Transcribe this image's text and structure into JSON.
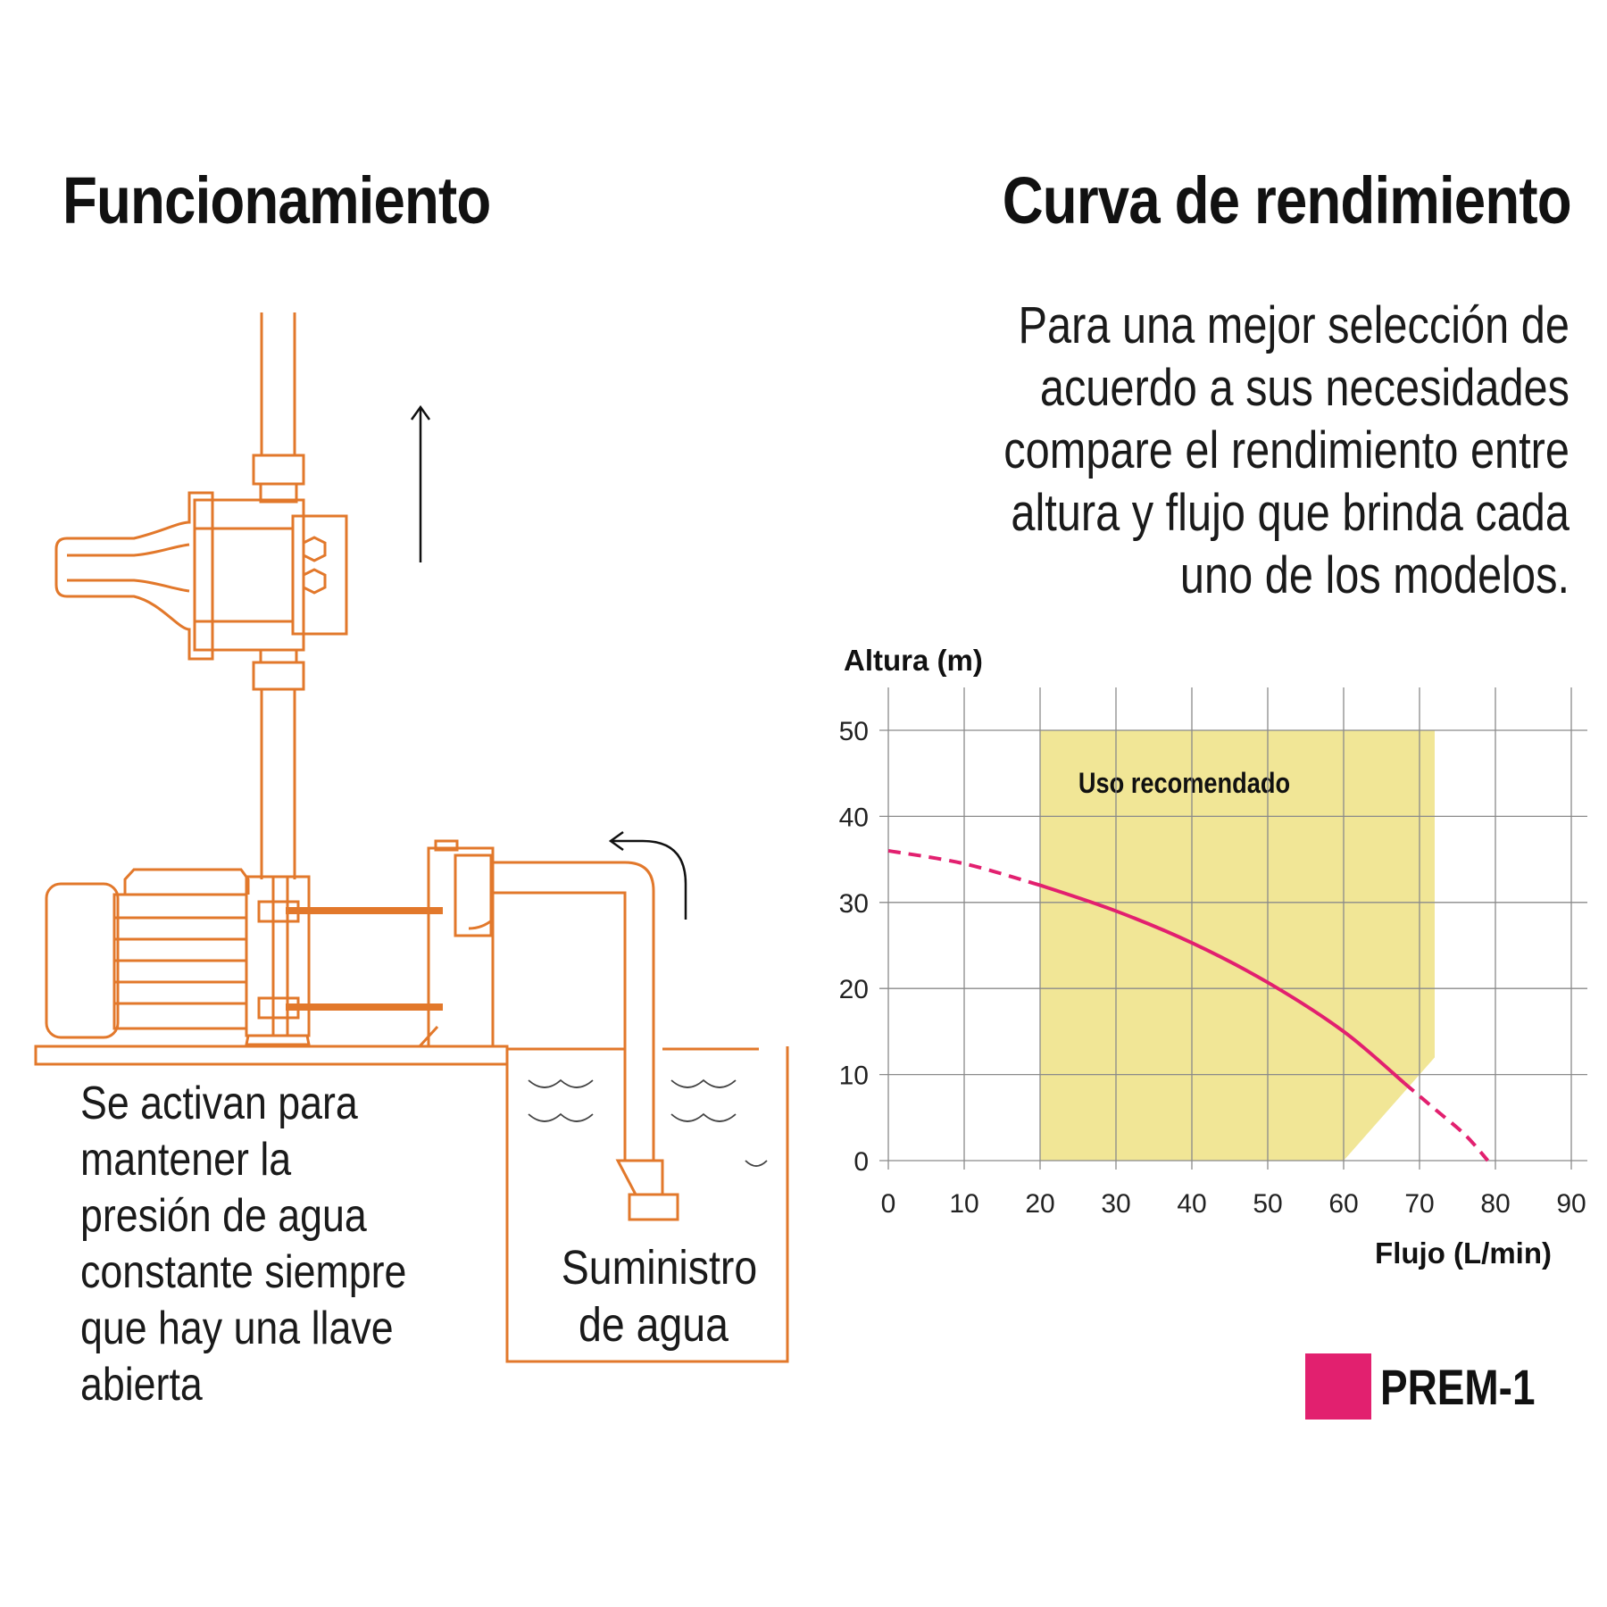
{
  "left_title": "Funcionamiento",
  "right_title": "Curva de rendimiento",
  "intro_lines": [
    "Para una mejor selección de",
    "acuerdo a sus necesidades",
    "compare el rendimiento entre",
    "altura y flujo que brinda cada",
    "uno de los modelos."
  ],
  "caption_lines": [
    "Se activan para",
    "mantener la",
    "presión de agua",
    "constante siempre",
    "que hay una llave",
    "abierta"
  ],
  "supply_lines": [
    "Suministro",
    "de agua"
  ],
  "colors": {
    "diagram_stroke": "#e2782b",
    "curve": "#e2206f",
    "recommended_zone": "#f1e696",
    "grid": "#8a8a8a"
  },
  "chart_data": {
    "type": "line",
    "xlabel": "Flujo (L/min)",
    "ylabel": "Altura (m)",
    "xlim": [
      0,
      90
    ],
    "ylim": [
      0,
      50
    ],
    "x_ticks": [
      "0",
      "10",
      "20",
      "30",
      "40",
      "50",
      "60",
      "70",
      "80",
      "90"
    ],
    "y_ticks": [
      "0",
      "10",
      "20",
      "30",
      "40",
      "50"
    ],
    "grid": true,
    "recommended_zone": {
      "label": "Uso recomendado",
      "polygon": [
        [
          20,
          0
        ],
        [
          60,
          0
        ],
        [
          72,
          12
        ],
        [
          72,
          50
        ],
        [
          20,
          50
        ]
      ]
    },
    "series": [
      {
        "name": "PREM-1",
        "solid": {
          "x": [
            20,
            30,
            40,
            50,
            60,
            68
          ],
          "y": [
            32,
            29,
            25.3,
            20.7,
            15,
            9
          ]
        },
        "dashed_low_flow": {
          "x": [
            0,
            10,
            20
          ],
          "y": [
            36,
            34.5,
            32
          ]
        },
        "dashed_high_flow": {
          "x": [
            68,
            72,
            76,
            79
          ],
          "y": [
            9,
            6,
            3,
            0
          ]
        }
      }
    ],
    "legend": {
      "position": "bottom-right",
      "label": "PREM-1"
    }
  }
}
